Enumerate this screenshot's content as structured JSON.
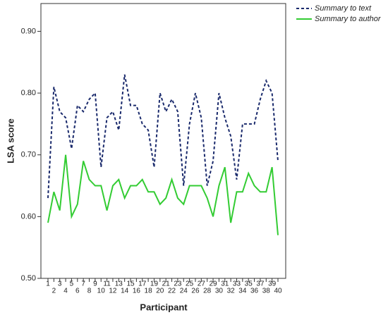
{
  "chart_data": {
    "type": "line",
    "x_label": "Participant",
    "y_label": "LSA score",
    "categories": [
      "1",
      "2",
      "3",
      "4",
      "5",
      "6",
      "7",
      "8",
      "9",
      "10",
      "11",
      "12",
      "13",
      "14",
      "15",
      "16",
      "17",
      "18",
      "19",
      "20",
      "21",
      "22",
      "23",
      "24",
      "25",
      "26",
      "27",
      "28",
      "29",
      "30",
      "31",
      "32",
      "33",
      "34",
      "35",
      "36",
      "37",
      "38",
      "39",
      "40"
    ],
    "series": [
      {
        "name": "Summary to text",
        "color": "#1a2a6c",
        "dashed": true,
        "values": [
          0.63,
          0.81,
          0.77,
          0.76,
          0.71,
          0.78,
          0.77,
          0.79,
          0.8,
          0.68,
          0.76,
          0.77,
          0.74,
          0.83,
          0.78,
          0.78,
          0.75,
          0.74,
          0.68,
          0.8,
          0.77,
          0.79,
          0.77,
          0.65,
          0.75,
          0.8,
          0.76,
          0.65,
          0.69,
          0.8,
          0.76,
          0.73,
          0.66,
          0.75,
          0.75,
          0.75,
          0.79,
          0.82,
          0.8,
          0.69
        ]
      },
      {
        "name": "Summary to author",
        "color": "#33cc33",
        "dashed": false,
        "values": [
          0.59,
          0.64,
          0.61,
          0.7,
          0.6,
          0.62,
          0.69,
          0.66,
          0.65,
          0.65,
          0.61,
          0.65,
          0.66,
          0.63,
          0.65,
          0.65,
          0.66,
          0.64,
          0.64,
          0.62,
          0.63,
          0.66,
          0.63,
          0.62,
          0.65,
          0.65,
          0.65,
          0.63,
          0.6,
          0.65,
          0.68,
          0.59,
          0.64,
          0.64,
          0.67,
          0.65,
          0.64,
          0.64,
          0.68,
          0.57
        ]
      }
    ],
    "ylim": [
      0.5,
      0.945
    ],
    "yticks": [
      {
        "value": 0.5,
        "label": "0.50"
      },
      {
        "value": 0.6,
        "label": "0.60"
      },
      {
        "value": 0.7,
        "label": "0.70"
      },
      {
        "value": 0.8,
        "label": "0.80"
      },
      {
        "value": 0.9,
        "label": "0.90"
      }
    ],
    "legend": "top-right"
  }
}
